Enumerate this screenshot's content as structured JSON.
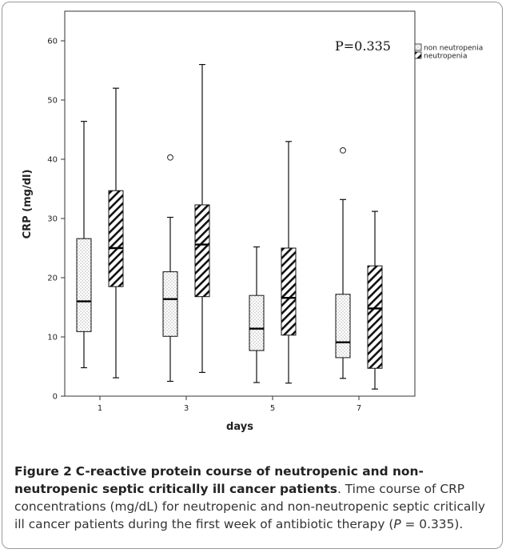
{
  "chart_data": {
    "type": "box",
    "title": "",
    "xlabel": "days",
    "ylabel": "CRP (mg/dl)",
    "ylim": [
      0,
      65
    ],
    "yticks": [
      0,
      10,
      20,
      30,
      40,
      50,
      60
    ],
    "categories": [
      "1",
      "3",
      "5",
      "7"
    ],
    "annotation": "P=0.335",
    "legend": {
      "position": "top-right",
      "entries": [
        "non neutropenia",
        "neutropenia"
      ]
    },
    "series": [
      {
        "name": "non neutropenia",
        "pattern": "dotted",
        "boxes": [
          {
            "min": 4.8,
            "q1": 10.9,
            "median": 16.0,
            "q3": 26.6,
            "max": 46.4,
            "outliers": []
          },
          {
            "min": 2.5,
            "q1": 10.1,
            "median": 16.4,
            "q3": 21.0,
            "max": 30.2,
            "outliers": [
              40.3
            ]
          },
          {
            "min": 2.3,
            "q1": 7.7,
            "median": 11.4,
            "q3": 17.0,
            "max": 25.2,
            "outliers": []
          },
          {
            "min": 3.0,
            "q1": 6.5,
            "median": 9.1,
            "q3": 17.2,
            "max": 33.2,
            "outliers": [
              41.5
            ]
          }
        ]
      },
      {
        "name": "neutropenia",
        "pattern": "hatched",
        "boxes": [
          {
            "min": 3.1,
            "q1": 18.5,
            "median": 25.0,
            "q3": 34.7,
            "max": 52.0,
            "outliers": []
          },
          {
            "min": 4.0,
            "q1": 16.8,
            "median": 25.6,
            "q3": 32.3,
            "max": 56.0,
            "outliers": []
          },
          {
            "min": 2.2,
            "q1": 10.3,
            "median": 16.6,
            "q3": 25.0,
            "max": 43.0,
            "outliers": []
          },
          {
            "min": 1.2,
            "q1": 4.7,
            "median": 14.8,
            "q3": 22.0,
            "max": 31.2,
            "outliers": []
          }
        ]
      }
    ]
  },
  "caption": {
    "figure_label": "Figure 2",
    "title": "C-reactive protein course of neutropenic and non-neutropenic septic critically ill cancer patients",
    "text_before_p": ". Time course of CRP concentrations (mg/dL) for neutropenic and non-neutropenic septic critically ill cancer patients during the first week of antibiotic therapy (",
    "p_symbol": "P",
    "text_after_p": " = 0.335)."
  }
}
